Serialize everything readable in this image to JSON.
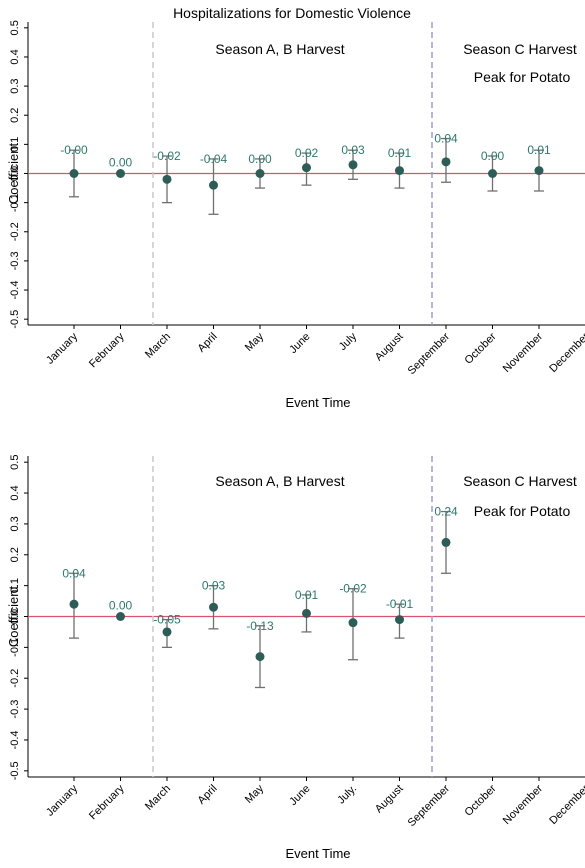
{
  "colors": {
    "point": "#2e5d57",
    "errorbar": "#707070",
    "zero_line": "#d9536f",
    "label": "#2e7a6e",
    "vline_left": "#c8c8c8",
    "vline_right": "#9a9ad8",
    "axis": "#000000"
  },
  "chart_data": [
    {
      "type": "scatter",
      "title": "Hospitalizations for Domestic Violence",
      "xlabel": "Event Time",
      "ylabel": "Coefficient",
      "ylim": [
        -0.52,
        0.52
      ],
      "yticks": [
        "-0.5",
        "-0.4",
        "-0.3",
        "-0.2",
        "-0.1",
        "0.0",
        "0.1",
        "0.2",
        "0.3",
        "0.4",
        "0.5"
      ],
      "ytick_values": [
        -0.5,
        -0.4,
        -0.3,
        -0.2,
        -0.1,
        0.0,
        0.1,
        0.2,
        0.3,
        0.4,
        0.5
      ],
      "categories": [
        "January",
        "February",
        "March",
        "April",
        "May",
        "June",
        "July",
        "August",
        "September",
        "October",
        "November",
        "December"
      ],
      "values": [
        0.0,
        0.0,
        -0.02,
        -0.04,
        0.0,
        0.02,
        0.03,
        0.01,
        0.04,
        0.0,
        0.01,
        null
      ],
      "ci_low": [
        -0.08,
        null,
        -0.1,
        -0.14,
        -0.05,
        -0.04,
        -0.02,
        -0.05,
        -0.03,
        -0.06,
        -0.06,
        null
      ],
      "ci_high": [
        0.08,
        null,
        0.06,
        0.05,
        0.05,
        0.07,
        0.08,
        0.07,
        0.12,
        0.06,
        0.08,
        null
      ],
      "data_labels": [
        "-0.00",
        "0.00",
        "-0.02",
        "-0.04",
        "0.00",
        "0.02",
        "0.03",
        "0.01",
        "0.04",
        "0.00",
        "0.01",
        ""
      ],
      "reference_line_y": 0,
      "vertical_lines": [
        {
          "between": [
            "February",
            "March"
          ],
          "style": "dashed",
          "color": "#c8c8c8"
        },
        {
          "between": [
            "August",
            "September"
          ],
          "style": "dashed",
          "color": "#9a9ad8"
        }
      ],
      "annotations": [
        "Season A, B Harvest",
        "Season C Harvest",
        "Peak for Potato"
      ],
      "grid": false
    },
    {
      "type": "scatter",
      "title": "",
      "xlabel": "Event Time",
      "ylabel": "Coefficient",
      "ylim": [
        -0.52,
        0.52
      ],
      "yticks": [
        "-0.5",
        "-0.4",
        "-0.3",
        "-0.2",
        "-0.1",
        "0.0",
        "0.1",
        "0.2",
        "0.3",
        "0.4",
        "0.5"
      ],
      "ytick_values": [
        -0.5,
        -0.4,
        -0.3,
        -0.2,
        -0.1,
        0.0,
        0.1,
        0.2,
        0.3,
        0.4,
        0.5
      ],
      "categories": [
        "January",
        "February",
        "March",
        "April",
        "May",
        "June",
        "July.",
        "August",
        "September",
        "October",
        "November",
        "December"
      ],
      "values": [
        0.04,
        0.0,
        -0.05,
        0.03,
        -0.13,
        0.01,
        -0.02,
        -0.01,
        0.24,
        null,
        null,
        null
      ],
      "ci_low": [
        -0.07,
        null,
        -0.1,
        -0.04,
        -0.23,
        -0.05,
        -0.14,
        -0.07,
        0.14,
        null,
        null,
        null
      ],
      "ci_high": [
        0.14,
        null,
        -0.01,
        0.1,
        -0.03,
        0.07,
        0.09,
        0.04,
        0.34,
        null,
        null,
        null
      ],
      "data_labels": [
        "0.04",
        "0.00",
        "-0.05",
        "0.03",
        "-0.13",
        "0.01",
        "-0.02",
        "-0.01",
        "0.24",
        "",
        "",
        ""
      ],
      "reference_line_y": 0,
      "vertical_lines": [
        {
          "between": [
            "February",
            "March"
          ],
          "style": "dashed",
          "color": "#c8c8c8"
        },
        {
          "between": [
            "August",
            "September"
          ],
          "style": "dashed",
          "color": "#9a9ad8"
        }
      ],
      "annotations": [
        "Season A, B Harvest",
        "Season C Harvest",
        "Peak for Potato"
      ],
      "grid": false
    }
  ]
}
